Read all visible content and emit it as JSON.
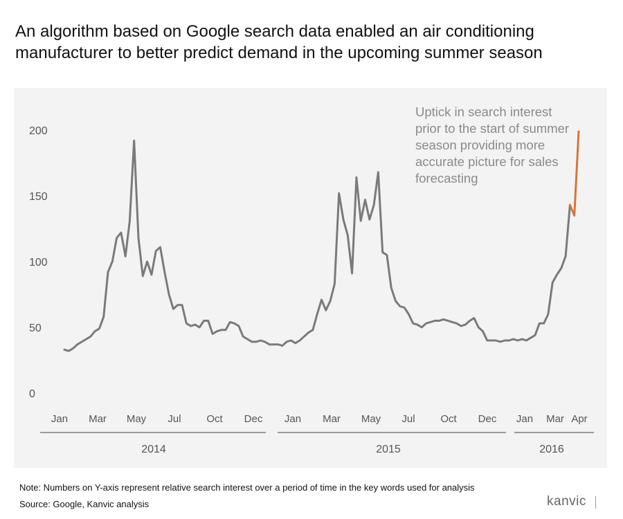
{
  "title": "An algorithm based on Google search data enabled an air conditioning manufacturer to better predict demand in the upcoming summer season",
  "annotation": "Uptick in search interest prior to the start of summer season providing more accurate picture for sales forecasting",
  "note": "Note: Numbers on Y-axis represent relative search interest over a period of time in the key words used for analysis",
  "source": "Source: Google, Kanvic analysis",
  "logo_text": "kanvic",
  "chart_data": {
    "type": "line",
    "title": "",
    "xlabel": "",
    "ylabel": "",
    "ylim": [
      0,
      200
    ],
    "yticks": [
      0,
      50,
      100,
      150,
      200
    ],
    "grid": false,
    "x_month_ticks": [
      "Jan",
      "Mar",
      "May",
      "Jul",
      "Oct",
      "Dec",
      "Jan",
      "Mar",
      "May",
      "Jul",
      "Oct",
      "Dec",
      "Jan",
      "Mar",
      "Apr"
    ],
    "x_year_labels": [
      "2014",
      "2015",
      "2016"
    ],
    "colors": {
      "base": "#7a7a7a",
      "highlight": "#d2773a",
      "text": "#555555"
    },
    "series": [
      {
        "values": [
          33,
          32,
          34,
          37,
          39,
          41,
          43,
          47,
          49,
          58,
          92,
          100,
          118,
          122,
          104,
          131,
          192,
          118,
          89,
          100,
          90,
          108,
          111,
          92,
          75,
          64,
          67,
          67,
          53,
          51,
          52,
          50,
          55,
          55,
          45,
          47,
          48,
          48,
          54,
          53,
          51,
          43,
          41,
          39,
          39,
          40,
          39,
          37,
          37,
          37,
          36,
          39,
          40,
          38,
          40,
          43,
          46,
          48,
          60,
          71,
          63,
          70,
          83,
          152,
          132,
          120,
          91,
          164,
          131,
          147,
          132,
          143,
          168,
          107,
          105,
          80,
          70,
          66,
          65,
          60,
          53,
          52,
          50,
          53,
          54,
          55,
          55,
          56,
          55,
          54,
          53,
          51,
          52,
          55,
          57,
          50,
          47,
          40,
          40,
          40,
          39,
          40,
          40,
          41,
          40,
          41,
          40,
          42,
          44,
          53,
          53,
          60,
          84,
          90,
          95,
          104,
          143,
          135,
          199
        ]
      }
    ],
    "highlight_from_index": 116
  }
}
